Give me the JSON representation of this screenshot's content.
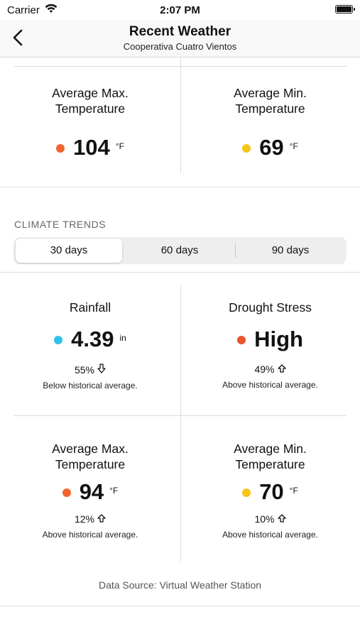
{
  "status_bar": {
    "carrier": "Carrier",
    "time": "2:07 PM"
  },
  "nav": {
    "title": "Recent Weather",
    "subtitle": "Cooperativa Cuatro Vientos"
  },
  "top_cards": [
    {
      "title_line1": "Average Max.",
      "title_line2": "Temperature",
      "value": "104",
      "unit": "°F",
      "dot_color": "#f26430"
    },
    {
      "title_line1": "Average Min.",
      "title_line2": "Temperature",
      "value": "69",
      "unit": "°F",
      "dot_color": "#f5c518"
    }
  ],
  "climate_trends": {
    "label": "CLIMATE TRENDS",
    "segments": [
      "30 days",
      "60 days",
      "90 days"
    ],
    "selected": "30 days",
    "cards": [
      {
        "title": "Rainfall",
        "value": "4.39",
        "unit": "in",
        "dot_color": "#2ec4ea",
        "pct": "55%",
        "direction": "down",
        "note": "Below historical average."
      },
      {
        "title": "Drought Stress",
        "value": "High",
        "unit": "",
        "dot_color": "#e8562a",
        "pct": "49%",
        "direction": "up",
        "note": "Above historical average."
      },
      {
        "title_line1": "Average Max.",
        "title_line2": "Temperature",
        "value": "94",
        "unit": "°F",
        "dot_color": "#f26430",
        "pct": "12%",
        "direction": "up",
        "note": "Above historical average."
      },
      {
        "title_line1": "Average Min.",
        "title_line2": "Temperature",
        "value": "70",
        "unit": "°F",
        "dot_color": "#f5c518",
        "pct": "10%",
        "direction": "up",
        "note": "Above historical average."
      }
    ]
  },
  "footer": {
    "data_source": "Data Source: Virtual Weather Station"
  }
}
